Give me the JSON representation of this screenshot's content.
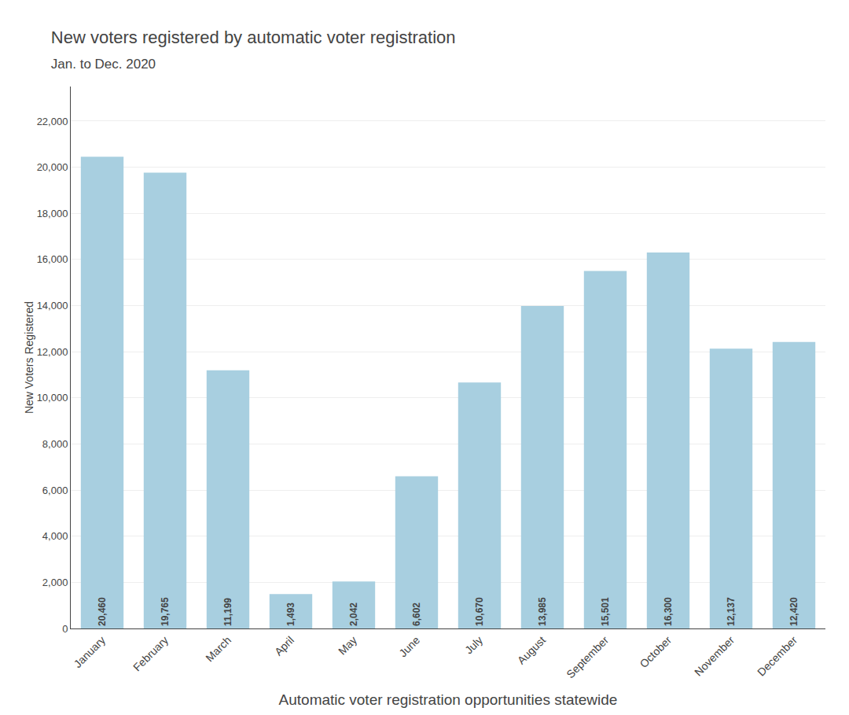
{
  "chart_data": {
    "type": "bar",
    "title": "New voters registered by automatic voter registration",
    "subtitle": "Jan. to Dec. 2020",
    "x_label": "Automatic voter registration opportunities statewide",
    "y_label": "New Voters Registered",
    "categories": [
      "January",
      "February",
      "March",
      "April",
      "May",
      "June",
      "July",
      "August",
      "September",
      "October",
      "November",
      "December"
    ],
    "values": [
      20460,
      19765,
      11199,
      1493,
      2042,
      6602,
      10670,
      13985,
      15501,
      16300,
      12137,
      12420
    ],
    "value_labels": [
      "20,460",
      "19,765",
      "11,199",
      "1,493",
      "2,042",
      "6,602",
      "10,670",
      "13,985",
      "15,501",
      "16,300",
      "12,137",
      "12,420"
    ],
    "data_labels": true,
    "color": "#a8cfe0",
    "ylim": [
      0,
      23500
    ],
    "yticks": [
      0,
      {
        "value": 2000,
        "label": "2,000"
      },
      {
        "value": 4000,
        "label": "4,000"
      },
      {
        "value": 6000,
        "label": "6,000"
      },
      {
        "value": 8000,
        "label": "8,000"
      },
      {
        "value": 10000,
        "label": "10,000"
      },
      {
        "value": 12000,
        "label": "12,000"
      },
      {
        "value": 14000,
        "label": "14,000"
      },
      {
        "value": 16000,
        "label": "16,000"
      },
      {
        "value": 18000,
        "label": "18,000"
      },
      {
        "value": 20000,
        "label": "20,000"
      },
      {
        "value": 22000,
        "label": "22,000"
      }
    ],
    "grid": true
  }
}
